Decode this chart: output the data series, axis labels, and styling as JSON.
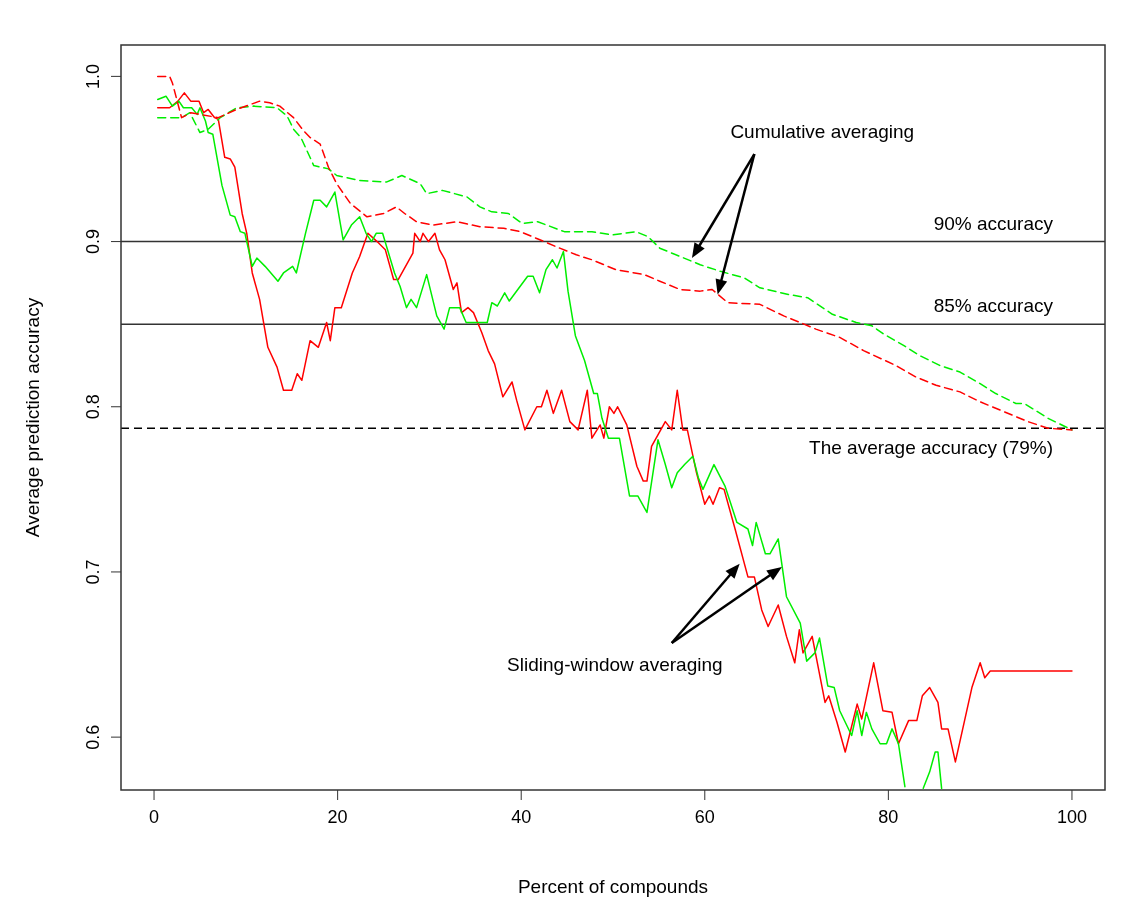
{
  "chart_data": {
    "type": "line",
    "xlabel": "Percent of compounds",
    "ylabel": "Average prediction accuracy",
    "xlim": [
      -3.6,
      103.6
    ],
    "ylim": [
      0.568,
      1.019
    ],
    "xticks": [
      0,
      20,
      40,
      60,
      80,
      100
    ],
    "yticks": [
      0.6,
      0.7,
      0.8,
      0.9,
      {
        "value": 1,
        "label": "1.0"
      }
    ],
    "grid": false,
    "series": [
      {
        "color": "#ff0000",
        "line_style": "solid",
        "x": [
          0.4,
          1.7,
          2.6,
          3.3,
          4.0,
          4.9,
          5.4,
          5.9,
          6.6,
          7.0,
          7.7,
          8.3,
          8.8,
          9.6,
          10.1,
          10.7,
          11.5,
          12.4,
          13.4,
          14.1,
          15.0,
          15.6,
          16.1,
          17.0,
          17.9,
          18.8,
          19.2,
          19.7,
          20.4,
          21.6,
          22.4,
          23.3,
          24.3,
          25.2,
          26.1,
          26.6,
          28.2,
          28.4,
          29.0,
          29.3,
          29.9,
          30.6,
          31.1,
          31.7,
          32.6,
          33.0,
          33.5,
          34.2,
          34.8,
          35.7,
          36.4,
          37.1,
          38.0,
          39.0,
          39.5,
          40.4,
          41.7,
          42.2,
          42.8,
          43.5,
          44.4,
          45.3,
          46.2,
          47.2,
          47.7,
          48.6,
          49.0,
          49.6,
          50.1,
          50.5,
          51.5,
          52.6,
          53.3,
          53.7,
          54.2,
          55.7,
          56.4,
          57.0,
          57.6,
          58.1,
          59.1,
          60.0,
          60.5,
          60.9,
          61.6,
          62.1,
          63.3,
          64.7,
          65.4,
          66.2,
          66.9,
          68.0,
          68.9,
          69.8,
          70.3,
          70.7,
          71.7,
          73.1,
          73.5,
          74.4,
          75.3,
          76.6,
          77.1,
          78.4,
          79.4,
          80.4,
          81.1,
          82.2,
          83.1,
          83.7,
          84.5,
          85.4,
          85.8,
          86.5,
          87.3,
          88.3,
          89.1,
          90.0,
          90.5,
          91.1,
          100
        ],
        "values": [
          0.981,
          0.981,
          0.985,
          0.99,
          0.985,
          0.985,
          0.978,
          0.98,
          0.975,
          0.974,
          0.951,
          0.95,
          0.945,
          0.917,
          0.905,
          0.881,
          0.865,
          0.836,
          0.824,
          0.81,
          0.81,
          0.82,
          0.816,
          0.84,
          0.836,
          0.851,
          0.84,
          0.86,
          0.86,
          0.881,
          0.891,
          0.905,
          0.9,
          0.895,
          0.877,
          0.877,
          0.893,
          0.905,
          0.9,
          0.905,
          0.9,
          0.905,
          0.895,
          0.889,
          0.871,
          0.875,
          0.857,
          0.86,
          0.857,
          0.845,
          0.834,
          0.826,
          0.806,
          0.815,
          0.804,
          0.786,
          0.8,
          0.8,
          0.81,
          0.796,
          0.81,
          0.791,
          0.786,
          0.81,
          0.781,
          0.789,
          0.781,
          0.8,
          0.796,
          0.8,
          0.789,
          0.764,
          0.755,
          0.755,
          0.776,
          0.791,
          0.786,
          0.81,
          0.786,
          0.786,
          0.76,
          0.741,
          0.746,
          0.741,
          0.751,
          0.75,
          0.726,
          0.697,
          0.697,
          0.677,
          0.667,
          0.68,
          0.661,
          0.645,
          0.665,
          0.651,
          0.661,
          0.621,
          0.625,
          0.609,
          0.591,
          0.62,
          0.611,
          0.645,
          0.616,
          0.615,
          0.596,
          0.61,
          0.61,
          0.625,
          0.63,
          0.621,
          0.605,
          0.605,
          0.585,
          0.61,
          0.63,
          0.645,
          0.636,
          0.64,
          0.64
        ]
      },
      {
        "color": "#00ee00",
        "line_style": "solid",
        "x": [
          0.4,
          1.3,
          2.0,
          2.7,
          3.2,
          4.1,
          4.7,
          5.0,
          5.6,
          5.9,
          6.4,
          7.4,
          8.3,
          8.8,
          9.4,
          9.9,
          10.7,
          11.2,
          12.1,
          13.5,
          14.1,
          15.1,
          15.5,
          16.5,
          17.4,
          18.1,
          18.8,
          19.7,
          20.6,
          21.5,
          22.4,
          23.1,
          23.7,
          24.2,
          24.9,
          26.2,
          26.8,
          27.5,
          28.0,
          28.6,
          29.7,
          30.8,
          31.6,
          32.2,
          33.3,
          34.0,
          34.9,
          36.3,
          36.8,
          37.4,
          38.2,
          38.7,
          40.7,
          41.3,
          42.0,
          42.7,
          43.4,
          43.9,
          44.6,
          45.1,
          45.9,
          46.9,
          47.9,
          48.3,
          48.8,
          49.5,
          50.7,
          51.8,
          52.7,
          53.7,
          54.9,
          55.7,
          56.4,
          57.0,
          57.8,
          58.7,
          59.3,
          59.8,
          61.0,
          62.2,
          63.5,
          64.7,
          65.2,
          65.6,
          66.6,
          67.1,
          68.0,
          68.9,
          70.4,
          71.1,
          72.0,
          72.5,
          73.4,
          74.1,
          74.7,
          76.0,
          76.6,
          77.1,
          77.6,
          78.2,
          79.1,
          79.8,
          80.4,
          81.1,
          81.8,
          82.5,
          83.8,
          84.5,
          85.1,
          85.4,
          85.8
        ],
        "values": [
          0.986,
          0.988,
          0.982,
          0.985,
          0.981,
          0.981,
          0.977,
          0.981,
          0.973,
          0.966,
          0.965,
          0.934,
          0.916,
          0.915,
          0.906,
          0.905,
          0.885,
          0.89,
          0.885,
          0.876,
          0.881,
          0.885,
          0.881,
          0.905,
          0.925,
          0.925,
          0.921,
          0.93,
          0.901,
          0.91,
          0.915,
          0.905,
          0.9,
          0.905,
          0.905,
          0.881,
          0.873,
          0.86,
          0.865,
          0.86,
          0.88,
          0.855,
          0.847,
          0.86,
          0.86,
          0.851,
          0.851,
          0.851,
          0.863,
          0.861,
          0.869,
          0.864,
          0.879,
          0.879,
          0.869,
          0.883,
          0.889,
          0.884,
          0.894,
          0.87,
          0.843,
          0.828,
          0.808,
          0.808,
          0.793,
          0.781,
          0.781,
          0.746,
          0.746,
          0.736,
          0.78,
          0.765,
          0.751,
          0.76,
          0.765,
          0.77,
          0.757,
          0.75,
          0.765,
          0.752,
          0.73,
          0.726,
          0.716,
          0.73,
          0.711,
          0.711,
          0.72,
          0.685,
          0.669,
          0.646,
          0.651,
          0.66,
          0.631,
          0.63,
          0.616,
          0.601,
          0.616,
          0.601,
          0.615,
          0.605,
          0.596,
          0.596,
          0.605,
          0.596,
          0.57,
          null,
          0.569,
          0.579,
          0.591,
          0.591,
          0.569
        ]
      },
      {
        "color": "#00ee00",
        "line_style": "dashed",
        "x": [
          0.4,
          3.0,
          3.9,
          5.0,
          5.9,
          7.2,
          9.0,
          10.8,
          13.4,
          14.5,
          15.2,
          16.0,
          17.4,
          19.0,
          19.9,
          22.4,
          25.3,
          27.0,
          29.0,
          29.7,
          31.4,
          34.1,
          35.5,
          36.8,
          38.6,
          40.1,
          41.8,
          44.7,
          47.7,
          49.9,
          52.5,
          53.8,
          55.1,
          57.3,
          59.5,
          61.7,
          64.3,
          66.0,
          69.1,
          71.2,
          73.9,
          76.5,
          78.2,
          79.5,
          81.7,
          83.4,
          85.6,
          87.8,
          90.0,
          91.7,
          93.9,
          94.8,
          97.4,
          100
        ],
        "values": [
          0.975,
          0.975,
          0.978,
          0.966,
          0.968,
          0.975,
          0.981,
          0.982,
          0.981,
          0.976,
          0.968,
          0.963,
          0.946,
          0.944,
          0.94,
          0.937,
          0.936,
          0.94,
          0.935,
          0.929,
          0.931,
          0.927,
          0.921,
          0.918,
          0.917,
          0.911,
          0.912,
          0.906,
          0.906,
          0.904,
          0.906,
          0.903,
          0.896,
          0.891,
          0.886,
          0.882,
          0.878,
          0.872,
          0.868,
          0.866,
          0.856,
          0.851,
          0.849,
          0.844,
          0.837,
          0.831,
          0.825,
          0.821,
          0.814,
          0.808,
          0.802,
          0.802,
          0.793,
          0.786
        ]
      },
      {
        "color": "#ff0000",
        "line_style": "dashed",
        "x": [
          0.4,
          1.7,
          2.0,
          3.0,
          4.0,
          5.0,
          7.0,
          9.0,
          11.5,
          12.6,
          13.7,
          15.2,
          16.3,
          17.0,
          18.1,
          19.0,
          19.9,
          21.4,
          23.2,
          25.0,
          26.4,
          27.3,
          28.6,
          30.4,
          33.0,
          35.5,
          38.1,
          39.9,
          42.5,
          44.2,
          46.0,
          47.7,
          50.3,
          53.4,
          55.1,
          57.3,
          59.5,
          60.8,
          62.5,
          66.0,
          68.6,
          70.4,
          72.1,
          74.7,
          77.3,
          80.8,
          83.0,
          85.2,
          87.8,
          90.0,
          92.6,
          95.2,
          97.4,
          100
        ],
        "values": [
          1,
          1,
          0.996,
          0.975,
          0.978,
          0.977,
          0.975,
          0.98,
          0.985,
          0.984,
          0.982,
          0.975,
          0.967,
          0.963,
          0.959,
          0.945,
          0.935,
          0.923,
          0.915,
          0.917,
          0.921,
          0.917,
          0.912,
          0.91,
          0.912,
          0.909,
          0.908,
          0.906,
          0.9,
          0.896,
          0.892,
          0.889,
          0.883,
          0.88,
          0.876,
          0.871,
          0.87,
          0.871,
          0.863,
          0.862,
          0.855,
          0.851,
          0.847,
          0.842,
          0.834,
          0.825,
          0.818,
          0.813,
          0.809,
          0.803,
          0.797,
          0.791,
          0.787,
          0.786
        ]
      }
    ],
    "ref_lines": [
      {
        "axis": "y",
        "value": 0.9,
        "label": "90% accuracy",
        "color": "#333333",
        "line_style": "solid"
      },
      {
        "axis": "y",
        "value": 0.85,
        "label": "85% accuracy",
        "color": "#333333",
        "line_style": "solid"
      },
      {
        "axis": "y",
        "value": 0.787,
        "label": "The average accuracy (79%)",
        "color": "#000000",
        "line_style": "dashed"
      }
    ],
    "annotations": [
      "Cumulative averaging",
      "Sliding-window averaging"
    ]
  }
}
